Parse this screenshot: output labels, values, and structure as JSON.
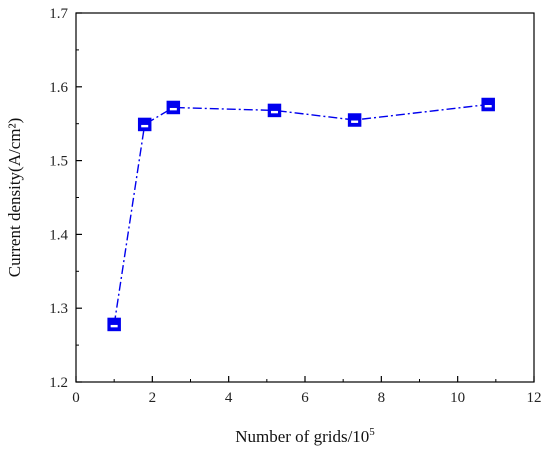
{
  "chart_data": {
    "type": "line",
    "xlabel": "Number of grids/10",
    "xlabel_superscript": "5",
    "ylabel": "Current density(A/cm²)",
    "xlim": [
      0,
      12
    ],
    "ylim": [
      1.2,
      1.7
    ],
    "xticks": [
      "0",
      "2",
      "4",
      "6",
      "8",
      "10",
      "12"
    ],
    "yticks": [
      "1.2",
      "1.3",
      "1.4",
      "1.5",
      "1.6",
      "1.7"
    ],
    "grid": false,
    "series": [
      {
        "line_style": "dash-dot",
        "marker": "half-filled-square",
        "color": "#0000ee",
        "points": [
          {
            "x": 1.0,
            "y": 1.278
          },
          {
            "x": 1.8,
            "y": 1.549
          },
          {
            "x": 2.55,
            "y": 1.572
          },
          {
            "x": 5.2,
            "y": 1.568
          },
          {
            "x": 7.3,
            "y": 1.555
          },
          {
            "x": 10.8,
            "y": 1.576
          }
        ]
      }
    ]
  }
}
